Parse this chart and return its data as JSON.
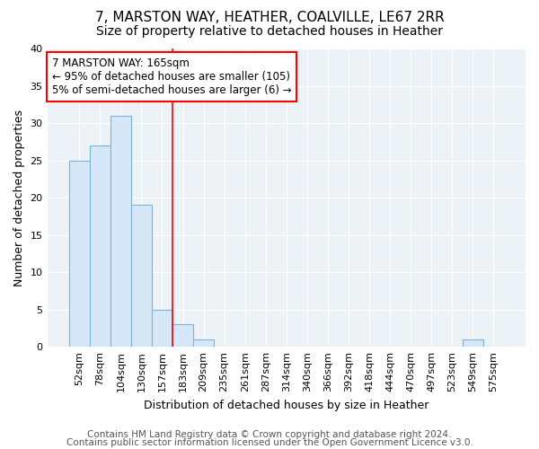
{
  "title": "7, MARSTON WAY, HEATHER, COALVILLE, LE67 2RR",
  "subtitle": "Size of property relative to detached houses in Heather",
  "xlabel": "Distribution of detached houses by size in Heather",
  "ylabel": "Number of detached properties",
  "bar_labels": [
    "52sqm",
    "78sqm",
    "104sqm",
    "130sqm",
    "157sqm",
    "183sqm",
    "209sqm",
    "235sqm",
    "261sqm",
    "287sqm",
    "314sqm",
    "340sqm",
    "366sqm",
    "392sqm",
    "418sqm",
    "444sqm",
    "470sqm",
    "497sqm",
    "523sqm",
    "549sqm",
    "575sqm"
  ],
  "bar_values": [
    25,
    27,
    31,
    19,
    5,
    3,
    1,
    0,
    0,
    0,
    0,
    0,
    0,
    0,
    0,
    0,
    0,
    0,
    0,
    1,
    0
  ],
  "bar_color": "#d6e8f7",
  "bar_edgecolor": "#7ab3d9",
  "ylim": [
    0,
    40
  ],
  "yticks": [
    0,
    5,
    10,
    15,
    20,
    25,
    30,
    35,
    40
  ],
  "redline_x": 4.5,
  "annotation_text": "7 MARSTON WAY: 165sqm\n← 95% of detached houses are smaller (105)\n5% of semi-detached houses are larger (6) →",
  "footer1": "Contains HM Land Registry data © Crown copyright and database right 2024.",
  "footer2": "Contains public sector information licensed under the Open Government Licence v3.0.",
  "title_fontsize": 11,
  "subtitle_fontsize": 10,
  "label_fontsize": 9,
  "tick_fontsize": 8,
  "annotation_fontsize": 8.5,
  "footer_fontsize": 7.5,
  "background_color": "#ffffff",
  "plot_background": "#edf2f7"
}
